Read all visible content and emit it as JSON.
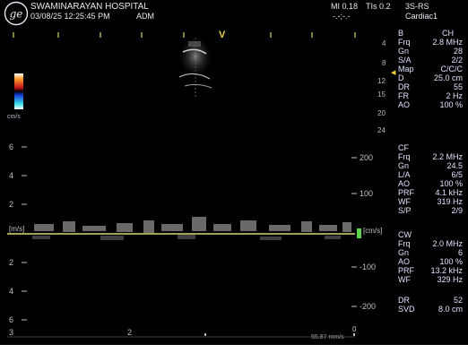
{
  "header": {
    "hospital": "SWAMINARAYAN HOSPITAL",
    "datetime": "03/08/25 12:25:45 PM",
    "operator": "ADM",
    "mi": "MI 0.18",
    "tis": "TIs 0.2",
    "probe": "3S-RS",
    "dashes": "-.-;-.-",
    "preset": "Cardiac1"
  },
  "bmode_params": {
    "mode": "B",
    "mode_right": "CH",
    "rows": [
      {
        "k": "Frq",
        "v": "2.8 MHz"
      },
      {
        "k": "Gn",
        "v": "28"
      },
      {
        "k": "S/A",
        "v": "2/2"
      },
      {
        "k": "Map",
        "v": "C/C/C"
      },
      {
        "k": "D",
        "v": "25.0 cm"
      },
      {
        "k": "DR",
        "v": "55"
      },
      {
        "k": "FR",
        "v": "2 Hz"
      },
      {
        "k": "AO",
        "v": "100 %"
      }
    ]
  },
  "cf_params": {
    "title": "CF",
    "rows": [
      {
        "k": "Frq",
        "v": "2.2 MHz"
      },
      {
        "k": "Gn",
        "v": "24.5"
      },
      {
        "k": "L/A",
        "v": "6/5"
      },
      {
        "k": "AO",
        "v": "100 %"
      },
      {
        "k": "PRF",
        "v": "4.1 kHz"
      },
      {
        "k": "WF",
        "v": "319 Hz"
      },
      {
        "k": "S/P",
        "v": "2/9"
      }
    ]
  },
  "cw_params": {
    "title": "CW",
    "rows": [
      {
        "k": "Frq",
        "v": "2.0 MHz"
      },
      {
        "k": "Gn",
        "v": "6"
      },
      {
        "k": "AO",
        "v": "100 %"
      },
      {
        "k": "PRF",
        "v": "13.2 kHz"
      },
      {
        "k": "WF",
        "v": "329 Hz"
      }
    ],
    "rows2": [
      {
        "k": "DR",
        "v": "52"
      },
      {
        "k": "SVD",
        "v": "8.0 cm"
      }
    ]
  },
  "depth_scale": [
    "4",
    "8",
    "12",
    "15",
    "20",
    "24"
  ],
  "color_bar_label": "cm/s",
  "spectral_left_axis": [
    "6",
    "4",
    "2",
    "2",
    "4",
    "6"
  ],
  "spectral_unit_left": "[m/s]",
  "spectral_right_axis": [
    "200",
    "100",
    "-100",
    "-200"
  ],
  "spectral_unit_right": "[cm/s]",
  "bottom_time_labels": [
    "3",
    "2"
  ],
  "bottom_right_text": "55.87 mm/s",
  "bottom_zero": "0",
  "focus_marker": "V",
  "colors": {
    "background": "#000000",
    "text": "#dfe3ff",
    "baseline": "#d8d86a",
    "marker_yellow": "#f0d23a",
    "green_marker": "#5bd24a"
  }
}
